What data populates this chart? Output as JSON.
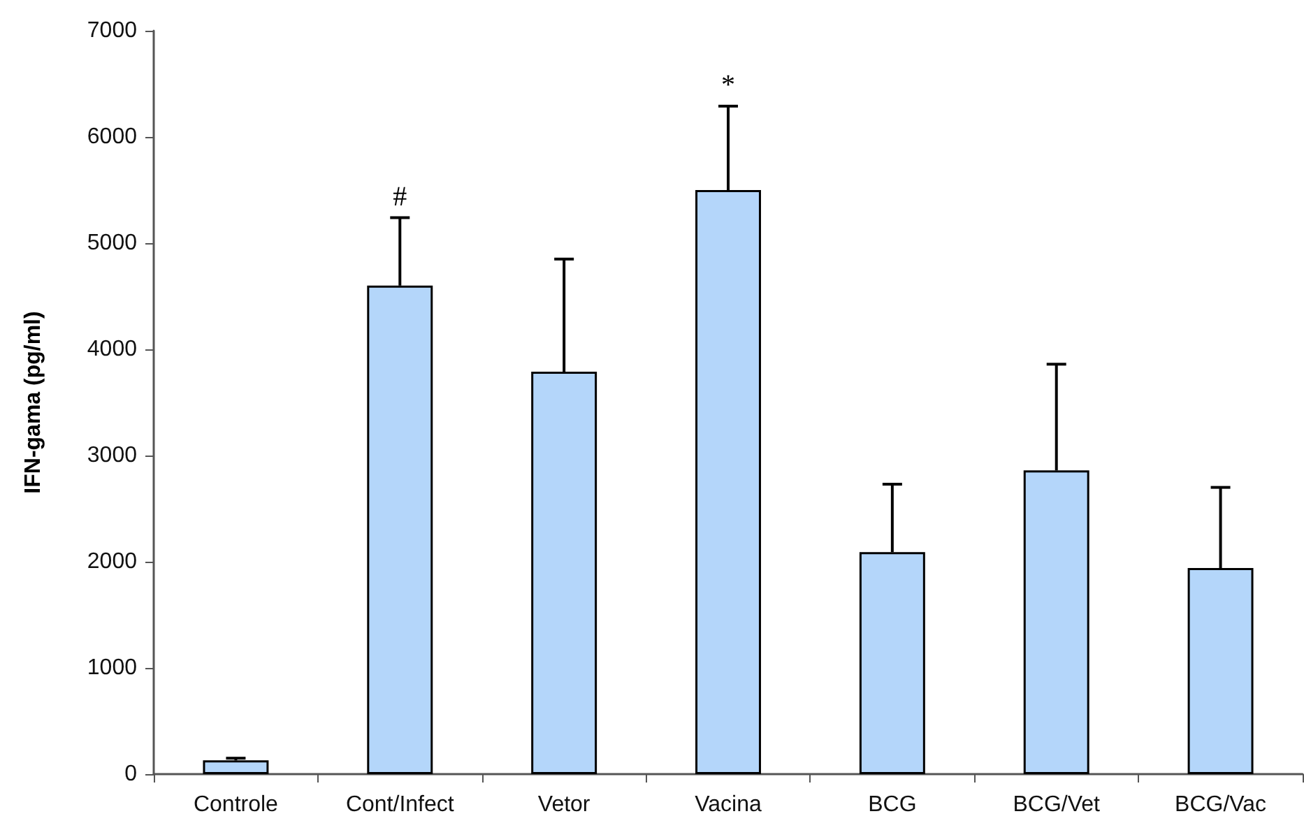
{
  "chart_data": {
    "type": "bar",
    "ylabel": "IFN-gama (pg/ml)",
    "categories": [
      "Controle",
      "Cont/Infect",
      "Vetor",
      "Vacina",
      "BCG",
      "BCG/Vet",
      "BCG/Vac"
    ],
    "values": [
      130,
      4600,
      3790,
      5500,
      2090,
      2860,
      1940
    ],
    "errors": [
      [
        130,
        150
      ],
      [
        4600,
        5240
      ],
      [
        3790,
        4850
      ],
      [
        5500,
        6290
      ],
      [
        2090,
        2730
      ],
      [
        2860,
        3860
      ],
      [
        1940,
        2700
      ]
    ],
    "color": "#b4d6fa",
    "ylim": [
      0,
      7000
    ],
    "yticks": [
      0,
      1000,
      2000,
      3000,
      4000,
      5000,
      6000,
      7000
    ],
    "grid": false,
    "annotations": [
      {
        "text": "#",
        "x": "Cont/Infect",
        "y": 5240
      },
      {
        "text": "*",
        "x": "Vacina",
        "y": 6290
      }
    ]
  }
}
